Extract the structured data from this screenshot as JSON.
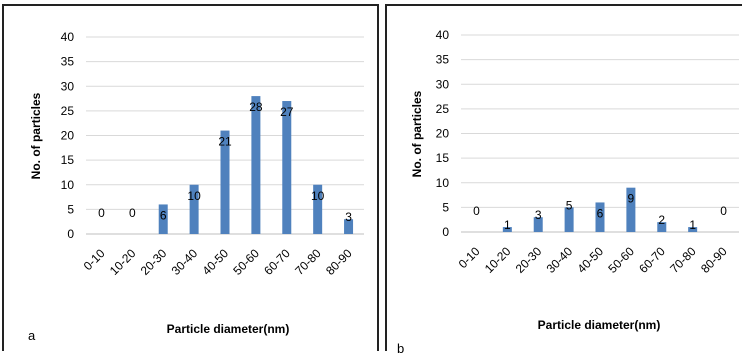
{
  "chart_data": [
    {
      "type": "bar",
      "panel_label": "a",
      "categories": [
        "0-10",
        "10-20",
        "20-30",
        "30-40",
        "40-50",
        "50-60",
        "60-70",
        "70-80",
        "80-90"
      ],
      "values": [
        0,
        0,
        6,
        10,
        21,
        28,
        27,
        10,
        3
      ],
      "data_labels": [
        "0",
        "0",
        "6",
        "10",
        "21",
        "28",
        "27",
        "10",
        "3"
      ],
      "xlabel": "Particle diameter(nm)",
      "ylabel": "No. of particles",
      "ylim": [
        0,
        40
      ],
      "yticks": [
        "0",
        "5",
        "10",
        "15",
        "20",
        "25",
        "30",
        "35",
        "40"
      ],
      "grid": true,
      "color": "#4f81bd"
    },
    {
      "type": "bar",
      "panel_label": "b",
      "categories": [
        "0-10",
        "10-20",
        "20-30",
        "30-40",
        "40-50",
        "50-60",
        "60-70",
        "70-80",
        "80-90"
      ],
      "values": [
        0,
        1,
        3,
        5,
        6,
        9,
        2,
        1,
        0
      ],
      "data_labels": [
        "0",
        "1",
        "3",
        "5",
        "6",
        "9",
        "2",
        "1",
        "0"
      ],
      "xlabel": "Particle diameter(nm)",
      "ylabel": "No. of particles",
      "ylim": [
        0,
        40
      ],
      "yticks": [
        "0",
        "5",
        "10",
        "15",
        "20",
        "25",
        "30",
        "35",
        "40"
      ],
      "grid": true,
      "color": "#4f81bd"
    }
  ]
}
